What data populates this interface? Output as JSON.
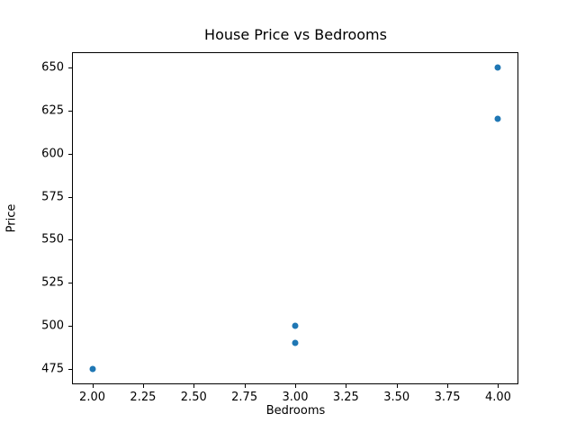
{
  "chart_data": {
    "type": "scatter",
    "title": "House Price vs Bedrooms",
    "xlabel": "Bedrooms",
    "ylabel": "Price",
    "x": [
      2,
      3,
      3,
      4,
      4
    ],
    "y": [
      475,
      490,
      500,
      620,
      650
    ],
    "xlim": [
      1.9,
      4.1
    ],
    "ylim": [
      466.25,
      658.75
    ],
    "xtick_labels": [
      "2.00",
      "2.25",
      "2.50",
      "2.75",
      "3.00",
      "3.25",
      "3.50",
      "3.75",
      "4.00"
    ],
    "xtick_values": [
      2.0,
      2.25,
      2.5,
      2.75,
      3.0,
      3.25,
      3.5,
      3.75,
      4.0
    ],
    "ytick_labels": [
      "475",
      "500",
      "525",
      "550",
      "575",
      "600",
      "625",
      "650"
    ],
    "ytick_values": [
      475,
      500,
      525,
      550,
      575,
      600,
      625,
      650
    ],
    "marker_color": "#1f77b4",
    "grid": false,
    "legend_position": "none",
    "background_color": "#ffffff"
  }
}
